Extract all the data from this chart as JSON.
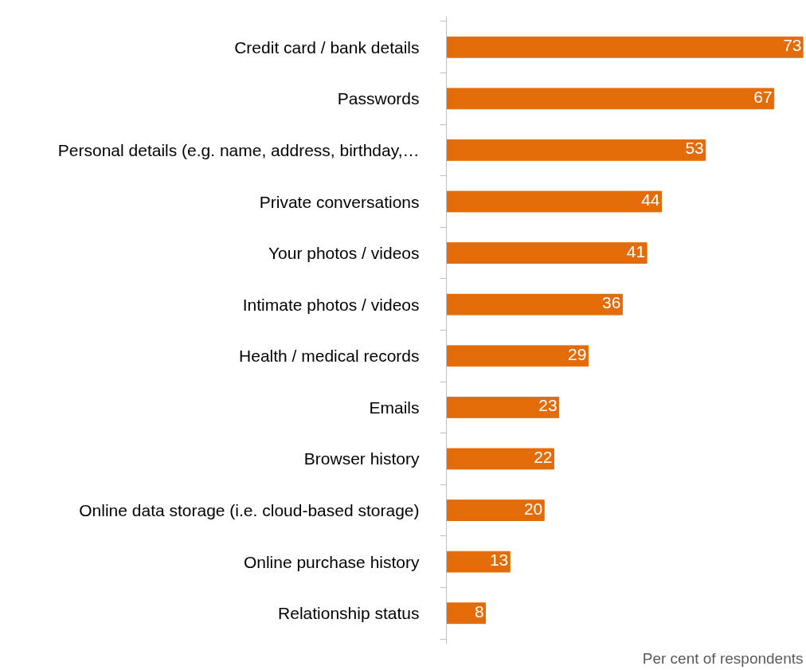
{
  "chart_data": {
    "type": "bar",
    "orientation": "horizontal",
    "xlabel": "Per cent of respondents",
    "categories": [
      "Credit card / bank details",
      "Passwords",
      "Personal details (e.g. name, address, birthday,…",
      "Private conversations",
      "Your photos / videos",
      "Intimate photos / videos",
      "Health / medical records",
      "Emails",
      "Browser history",
      "Online data storage (i.e. cloud-based storage)",
      "Online purchase history",
      "Relationship status"
    ],
    "values": [
      73,
      67,
      53,
      44,
      41,
      36,
      29,
      23,
      22,
      20,
      13,
      8
    ],
    "color": "#e36c09",
    "data_labels": true,
    "grid": false,
    "tick_labels": "y"
  }
}
